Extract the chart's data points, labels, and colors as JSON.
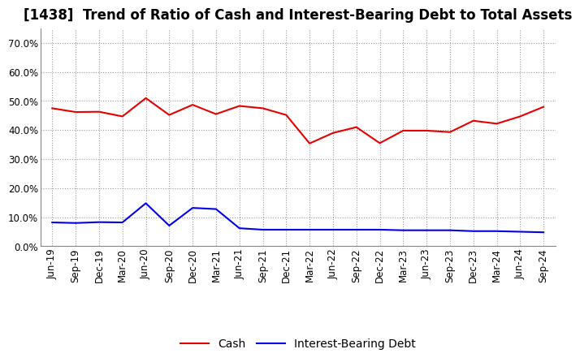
{
  "title": "[1438]  Trend of Ratio of Cash and Interest-Bearing Debt to Total Assets",
  "labels": [
    "Jun-19",
    "Sep-19",
    "Dec-19",
    "Mar-20",
    "Jun-20",
    "Sep-20",
    "Dec-20",
    "Mar-21",
    "Jun-21",
    "Sep-21",
    "Dec-21",
    "Mar-22",
    "Jun-22",
    "Sep-22",
    "Dec-22",
    "Mar-23",
    "Jun-23",
    "Sep-23",
    "Dec-23",
    "Mar-24",
    "Jun-24",
    "Sep-24"
  ],
  "cash": [
    0.475,
    0.462,
    0.463,
    0.447,
    0.51,
    0.452,
    0.487,
    0.455,
    0.483,
    0.475,
    0.452,
    0.354,
    0.39,
    0.41,
    0.355,
    0.398,
    0.398,
    0.393,
    0.432,
    0.422,
    0.447,
    0.48
  ],
  "interest_bearing_debt": [
    0.082,
    0.08,
    0.083,
    0.082,
    0.148,
    0.071,
    0.132,
    0.128,
    0.062,
    0.057,
    0.057,
    0.057,
    0.057,
    0.057,
    0.057,
    0.055,
    0.055,
    0.055,
    0.052,
    0.052,
    0.05,
    0.048
  ],
  "cash_color": "#e80000",
  "debt_color": "#0000ee",
  "background_color": "#ffffff",
  "plot_background": "#ffffff",
  "grid_color": "#999999",
  "ylim": [
    0.0,
    0.75
  ],
  "yticks": [
    0.0,
    0.1,
    0.2,
    0.3,
    0.4,
    0.5,
    0.6,
    0.7
  ],
  "legend_cash": "Cash",
  "legend_debt": "Interest-Bearing Debt",
  "title_fontsize": 12,
  "tick_fontsize": 8.5,
  "legend_fontsize": 10
}
